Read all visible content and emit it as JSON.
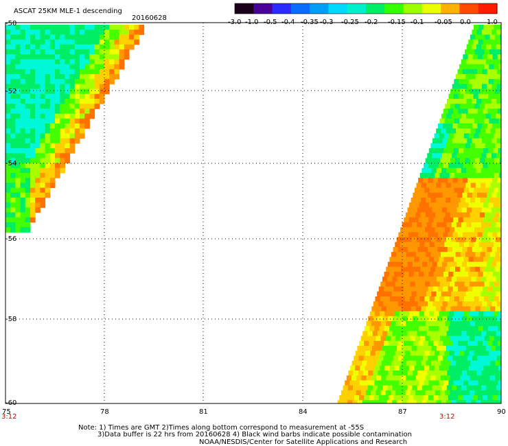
{
  "header": {
    "title": "ASCAT 25KM MLE-1 descending",
    "date": "20160628"
  },
  "colorbar": {
    "tick_labels": [
      "-3.0",
      "-1.0",
      "-0.5",
      "-0.4",
      "-0.35",
      "-0.3",
      "-0.25",
      "-0.2",
      "-0.15",
      "-0.1",
      "-0.05",
      "0.0",
      "1.0"
    ],
    "colors": [
      "#1a0018",
      "#4b0096",
      "#2a2bff",
      "#0a6cff",
      "#009ef5",
      "#00d8ff",
      "#00f0cc",
      "#00ee66",
      "#33ff00",
      "#9cff00",
      "#eaff00",
      "#ffb000",
      "#ff4a00",
      "#ff1a00"
    ]
  },
  "map": {
    "y_labels": [
      "-50",
      "-52",
      "-54",
      "-56",
      "-58",
      "-60"
    ],
    "x_labels": [
      "75",
      "78",
      "81",
      "84",
      "87",
      "90"
    ],
    "time_labels": [
      "3:12",
      "3:12"
    ]
  },
  "footer": {
    "line1": "Note: 1) Times are GMT 2)Times along bottom correspond to measurement at -55S",
    "line2": "3)Data buffer is 22 hrs from 20160628 4) Black wind barbs indicate possible contamination",
    "line3": "NOAA/NESDIS/Center for Satellite Applications and Research"
  }
}
